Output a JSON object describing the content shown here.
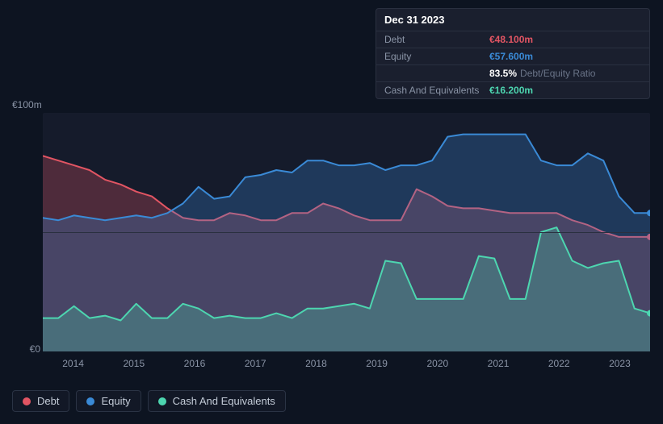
{
  "tooltip": {
    "date": "Dec 31 2023",
    "rows": [
      {
        "label": "Debt",
        "value": "€48.100m",
        "color": "#e25563"
      },
      {
        "label": "Equity",
        "value": "€57.600m",
        "color": "#3a8ad6"
      },
      {
        "ratio": "83.5%",
        "ratio_label": "Debt/Equity Ratio"
      },
      {
        "label": "Cash And Equivalents",
        "value": "€16.200m",
        "color": "#4dd6b0"
      }
    ]
  },
  "chart": {
    "type": "area",
    "background_color": "#151b2b",
    "page_background": "#0d1421",
    "grid_color": "#2a3040",
    "text_color": "#8a94a6",
    "ylim": [
      0,
      100
    ],
    "y_max_label": "€100m",
    "y_min_label": "€0",
    "mid_gridline_at": 50,
    "x_labels": [
      "2014",
      "2015",
      "2016",
      "2017",
      "2018",
      "2019",
      "2020",
      "2021",
      "2022",
      "2023"
    ],
    "line_width": 2,
    "fill_opacity": 0.28,
    "endpoint_marker_radius": 4,
    "series": [
      {
        "name": "Debt",
        "color": "#e25563",
        "values": [
          82,
          80,
          78,
          76,
          72,
          70,
          67,
          65,
          60,
          56,
          55,
          55,
          58,
          57,
          55,
          55,
          58,
          58,
          62,
          60,
          57,
          55,
          55,
          55,
          68,
          65,
          61,
          60,
          60,
          59,
          58,
          58,
          58,
          58,
          55,
          53,
          50,
          48,
          48,
          48
        ]
      },
      {
        "name": "Equity",
        "color": "#3a8ad6",
        "values": [
          56,
          55,
          57,
          56,
          55,
          56,
          57,
          56,
          58,
          62,
          69,
          64,
          65,
          73,
          74,
          76,
          75,
          80,
          80,
          78,
          78,
          79,
          76,
          78,
          78,
          80,
          90,
          91,
          91,
          91,
          91,
          91,
          80,
          78,
          78,
          83,
          80,
          65,
          58,
          58
        ]
      },
      {
        "name": "Cash And Equivalents",
        "color": "#4dd6b0",
        "values": [
          14,
          14,
          19,
          14,
          15,
          13,
          20,
          14,
          14,
          20,
          18,
          14,
          15,
          14,
          14,
          16,
          14,
          18,
          18,
          19,
          20,
          18,
          38,
          37,
          22,
          22,
          22,
          22,
          40,
          39,
          22,
          22,
          50,
          52,
          38,
          35,
          37,
          38,
          18,
          16
        ]
      }
    ]
  },
  "legend": {
    "items": [
      {
        "label": "Debt",
        "color": "#e25563"
      },
      {
        "label": "Equity",
        "color": "#3a8ad6"
      },
      {
        "label": "Cash And Equivalents",
        "color": "#4dd6b0"
      }
    ]
  }
}
